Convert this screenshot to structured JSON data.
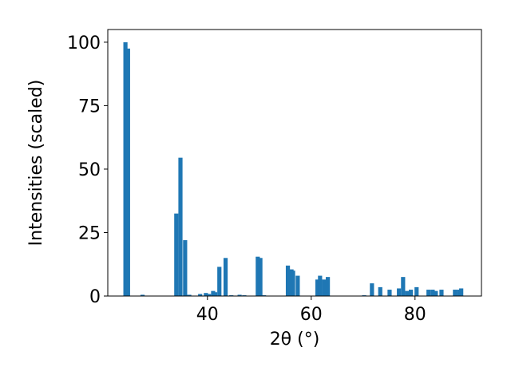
{
  "chart_data": {
    "type": "bar",
    "xlabel": "2θ (°)",
    "ylabel": "Intensities (scaled)",
    "x": [
      24.2,
      24.7,
      27.5,
      34.0,
      34.8,
      35.7,
      36.5,
      38.6,
      39.7,
      40.3,
      41.1,
      41.5,
      42.3,
      43.5,
      44.6,
      46.2,
      47.1,
      49.7,
      50.2,
      50.9,
      55.5,
      56.2,
      56.5,
      57.4,
      61.2,
      61.7,
      62.5,
      63.2,
      70.2,
      71.7,
      73.3,
      75.1,
      76.9,
      77.7,
      78.5,
      79.2,
      80.3,
      82.6,
      83.4,
      84.0,
      85.1,
      87.7,
      88.5,
      88.9
    ],
    "values": [
      100,
      97.5,
      0.5,
      32.5,
      54.5,
      22,
      0.5,
      0.8,
      1.2,
      0.8,
      2,
      1.5,
      11.5,
      15,
      0.3,
      0.5,
      0.3,
      15.5,
      15,
      0.3,
      12,
      10.5,
      10,
      8,
      6.5,
      8,
      6.5,
      7.5,
      0.3,
      5,
      3.5,
      2.5,
      3,
      7.5,
      2,
      2.5,
      3.5,
      2.5,
      2.5,
      2,
      2.5,
      2.5,
      2.5,
      3
    ],
    "color": "#1f77b4",
    "xlim": [
      20.8,
      92.8
    ],
    "xticks": [
      40,
      60,
      80
    ],
    "ylim": [
      0,
      105
    ],
    "yticks": [
      0,
      25,
      50,
      75,
      100
    ]
  }
}
